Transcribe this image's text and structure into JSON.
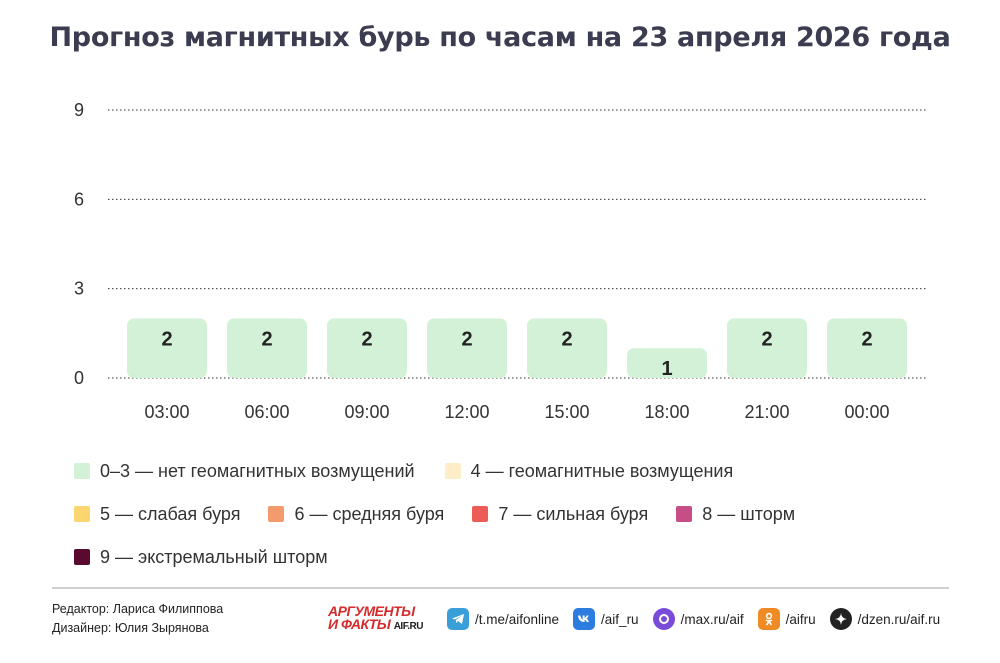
{
  "title": "Прогноз магнитных бурь по часам на 23 апреля 2026 года",
  "chart_data": {
    "type": "bar",
    "title": "Прогноз магнитных бурь по часам на 23 апреля 2026 года",
    "categories": [
      "03:00",
      "06:00",
      "09:00",
      "12:00",
      "15:00",
      "18:00",
      "21:00",
      "00:00"
    ],
    "values": [
      2,
      2,
      2,
      2,
      2,
      1,
      2,
      2
    ],
    "ylim": [
      0,
      9
    ],
    "yticks": [
      0,
      3,
      6,
      9
    ],
    "grid": "horizontal dotted",
    "bar_color": "#d2f1d6",
    "data_labels": true
  },
  "legend": [
    [
      {
        "label": "0–3 — нет геомагнитных возмущений",
        "color": "#d2f1d6"
      },
      {
        "label": "4 — геомагнитные возмущения",
        "color": "#fdeec8"
      }
    ],
    [
      {
        "label": "5 — слабая буря",
        "color": "#fbd56f"
      },
      {
        "label": "6 — средняя буря",
        "color": "#f39b6b"
      },
      {
        "label": "7 — сильная буря",
        "color": "#ec5d55"
      },
      {
        "label": "8 — шторм",
        "color": "#c74d87"
      }
    ],
    [
      {
        "label": "9 — экстремальный шторм",
        "color": "#5a0a2c"
      }
    ]
  ],
  "credits": {
    "editor": "Редактор: Лариса Филиппова",
    "designer": "Дизайнер: Юлия Зырянова"
  },
  "brand": {
    "line1": "АРГУМЕНТЫ",
    "line2": "И ФАКТЫ",
    "domain": "AIF.RU"
  },
  "socials": [
    {
      "icon": "telegram-icon",
      "label": "/t.me/aifonline",
      "color": "#3a9fd8"
    },
    {
      "icon": "vk-icon",
      "label": "/aif_ru",
      "color": "#2d7ce0"
    },
    {
      "icon": "max-icon",
      "label": "/max.ru/aif",
      "color": "#7a4bd8"
    },
    {
      "icon": "ok-icon",
      "label": "/aifru",
      "color": "#f08a24"
    },
    {
      "icon": "dzen-icon",
      "label": "/dzen.ru/aif.ru",
      "color": "#222222"
    }
  ]
}
